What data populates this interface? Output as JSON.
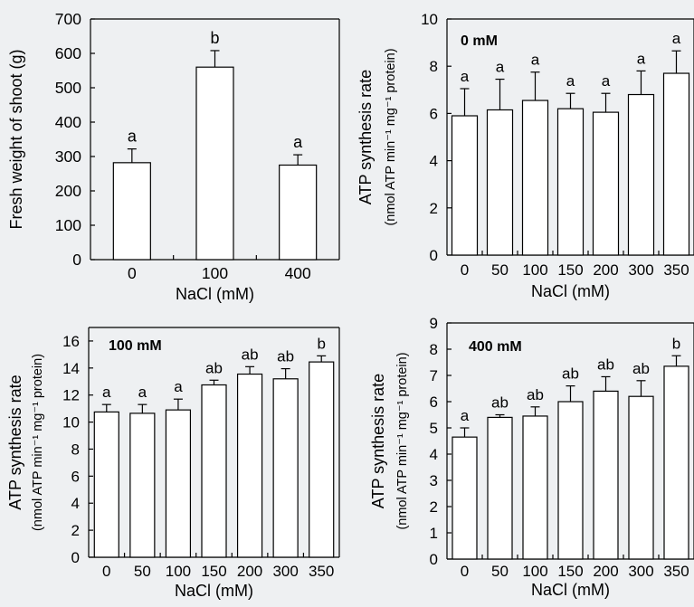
{
  "chart_data": [
    {
      "type": "bar",
      "panel_label": "",
      "categories": [
        "0",
        "100",
        "400"
      ],
      "values": [
        282,
        560,
        275
      ],
      "errors": [
        40,
        48,
        30
      ],
      "letters": [
        "a",
        "b",
        "a"
      ],
      "xlabel": "NaCl (mM)",
      "ylabel": "Fresh weight of shoot (g)",
      "ylabel_sub": "",
      "ylim": [
        0,
        700
      ],
      "yticks": [
        "0",
        "100",
        "200",
        "300",
        "400",
        "500",
        "600",
        "700"
      ],
      "colors": {
        "bar_fill": "#ffffff",
        "stroke": "#000000"
      }
    },
    {
      "type": "bar",
      "panel_label": "0 mM",
      "categories": [
        "0",
        "50",
        "100",
        "150",
        "200",
        "300",
        "350"
      ],
      "values": [
        5.9,
        6.15,
        6.55,
        6.2,
        6.05,
        6.8,
        7.7
      ],
      "errors": [
        1.15,
        1.3,
        1.2,
        0.65,
        0.8,
        1.0,
        0.95
      ],
      "letters": [
        "a",
        "a",
        "a",
        "a",
        "a",
        "a",
        "a"
      ],
      "xlabel": "NaCl (mM)",
      "ylabel": "ATP synthesis rate",
      "ylabel_sub": "(nmol ATP min⁻¹ mg⁻¹ protein)",
      "ylim": [
        0,
        10
      ],
      "yticks": [
        "0",
        "2",
        "4",
        "6",
        "8",
        "10"
      ],
      "colors": {
        "bar_fill": "#ffffff",
        "stroke": "#000000"
      }
    },
    {
      "type": "bar",
      "panel_label": "100 mM",
      "categories": [
        "0",
        "50",
        "100",
        "150",
        "200",
        "300",
        "350"
      ],
      "values": [
        10.75,
        10.65,
        10.9,
        12.75,
        13.55,
        13.2,
        14.45
      ],
      "errors": [
        0.55,
        0.65,
        0.8,
        0.35,
        0.55,
        0.75,
        0.45
      ],
      "letters": [
        "a",
        "a",
        "a",
        "ab",
        "ab",
        "ab",
        "b"
      ],
      "xlabel": "NaCl (mM)",
      "ylabel": "ATP synthesis rate",
      "ylabel_sub": "(nmol ATP min⁻¹ mg⁻¹ protein)",
      "ylim": [
        0,
        17
      ],
      "yticks": [
        "0",
        "2",
        "4",
        "6",
        "8",
        "10",
        "12",
        "14",
        "16"
      ],
      "colors": {
        "bar_fill": "#ffffff",
        "stroke": "#000000"
      }
    },
    {
      "type": "bar",
      "panel_label": "400 mM",
      "categories": [
        "0",
        "50",
        "100",
        "150",
        "200",
        "300",
        "350"
      ],
      "values": [
        4.65,
        5.4,
        5.45,
        6.0,
        6.4,
        6.2,
        7.35
      ],
      "errors": [
        0.35,
        0.1,
        0.35,
        0.6,
        0.55,
        0.6,
        0.4
      ],
      "letters": [
        "a",
        "ab",
        "ab",
        "ab",
        "ab",
        "ab",
        "b"
      ],
      "xlabel": "NaCl (mM)",
      "ylabel": "ATP synthesis rate",
      "ylabel_sub": "(nmol ATP min⁻¹ mg⁻¹ protein)",
      "ylim": [
        0,
        9
      ],
      "yticks": [
        "0",
        "1",
        "2",
        "3",
        "4",
        "5",
        "6",
        "7",
        "8",
        "9"
      ],
      "colors": {
        "bar_fill": "#ffffff",
        "stroke": "#000000"
      }
    }
  ]
}
